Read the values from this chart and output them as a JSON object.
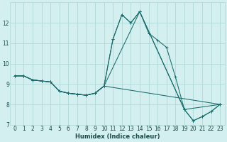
{
  "xlabel": "Humidex (Indice chaleur)",
  "bg_color": "#d4efef",
  "grid_color": "#b0d8d8",
  "line_color": "#1a6b6b",
  "xlim": [
    -0.5,
    23.5
  ],
  "ylim": [
    7,
    13
  ],
  "xticks": [
    0,
    1,
    2,
    3,
    4,
    5,
    6,
    7,
    8,
    9,
    10,
    11,
    12,
    13,
    14,
    15,
    16,
    17,
    18,
    19,
    20,
    21,
    22,
    23
  ],
  "yticks": [
    7,
    8,
    9,
    10,
    11,
    12
  ],
  "lines": [
    [
      [
        0,
        9.4
      ],
      [
        1,
        9.4
      ],
      [
        2,
        9.2
      ],
      [
        3,
        9.15
      ],
      [
        4,
        9.1
      ],
      [
        5,
        8.65
      ],
      [
        6,
        8.55
      ],
      [
        7,
        8.5
      ],
      [
        8,
        8.45
      ],
      [
        9,
        8.55
      ],
      [
        10,
        8.9
      ],
      [
        11,
        11.2
      ],
      [
        12,
        12.4
      ],
      [
        13,
        12.0
      ],
      [
        14,
        12.55
      ],
      [
        15,
        11.5
      ],
      [
        16,
        11.15
      ],
      [
        17,
        10.8
      ],
      [
        18,
        9.35
      ],
      [
        19,
        7.75
      ],
      [
        20,
        7.2
      ],
      [
        21,
        7.4
      ],
      [
        22,
        7.65
      ],
      [
        23,
        8.0
      ]
    ],
    [
      [
        0,
        9.4
      ],
      [
        1,
        9.4
      ],
      [
        2,
        9.2
      ],
      [
        3,
        9.15
      ],
      [
        4,
        9.1
      ],
      [
        5,
        8.65
      ],
      [
        6,
        8.55
      ],
      [
        7,
        8.5
      ],
      [
        8,
        8.45
      ],
      [
        9,
        8.55
      ],
      [
        10,
        8.9
      ],
      [
        23,
        8.0
      ]
    ],
    [
      [
        0,
        9.4
      ],
      [
        1,
        9.4
      ],
      [
        2,
        9.2
      ],
      [
        3,
        9.15
      ],
      [
        4,
        9.1
      ],
      [
        5,
        8.65
      ],
      [
        6,
        8.55
      ],
      [
        7,
        8.5
      ],
      [
        8,
        8.45
      ],
      [
        9,
        8.55
      ],
      [
        10,
        8.9
      ],
      [
        11,
        11.2
      ],
      [
        12,
        12.4
      ],
      [
        13,
        12.0
      ],
      [
        14,
        12.55
      ],
      [
        19,
        7.75
      ],
      [
        20,
        7.2
      ],
      [
        21,
        7.4
      ],
      [
        22,
        7.65
      ],
      [
        23,
        8.0
      ]
    ],
    [
      [
        0,
        9.4
      ],
      [
        1,
        9.4
      ],
      [
        2,
        9.2
      ],
      [
        3,
        9.15
      ],
      [
        4,
        9.1
      ],
      [
        5,
        8.65
      ],
      [
        6,
        8.55
      ],
      [
        7,
        8.5
      ],
      [
        8,
        8.45
      ],
      [
        9,
        8.55
      ],
      [
        10,
        8.9
      ],
      [
        14,
        12.55
      ],
      [
        19,
        7.75
      ],
      [
        23,
        8.0
      ]
    ]
  ]
}
